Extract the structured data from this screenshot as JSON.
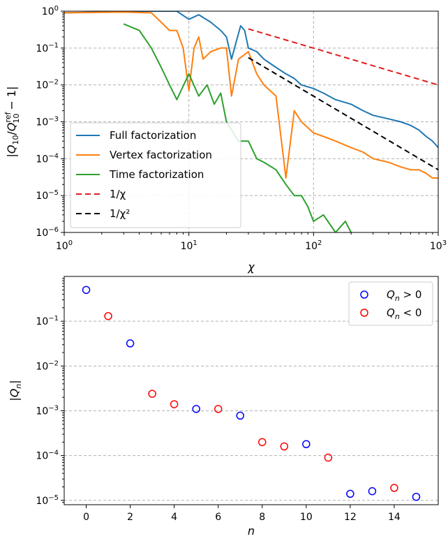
{
  "chart_data": [
    {
      "type": "line",
      "xscale": "log",
      "yscale": "log",
      "xlim": [
        1,
        1000
      ],
      "ylim": [
        1e-06,
        1
      ],
      "xlabel": "χ",
      "ylabel": "|Q_10/Q_10^ref − 1|",
      "xticks": [
        {
          "value": 1,
          "base": "10",
          "exp": "0"
        },
        {
          "value": 10,
          "base": "10",
          "exp": "1"
        },
        {
          "value": 100,
          "base": "10",
          "exp": "2"
        },
        {
          "value": 1000,
          "base": "10",
          "exp": "3"
        }
      ],
      "yticks": [
        {
          "value": 1,
          "base": "10",
          "exp": "0"
        },
        {
          "value": 0.1,
          "base": "10",
          "exp": "−1"
        },
        {
          "value": 0.01,
          "base": "10",
          "exp": "−2"
        },
        {
          "value": 0.001,
          "base": "10",
          "exp": "−3"
        },
        {
          "value": 0.0001,
          "base": "10",
          "exp": "−4"
        },
        {
          "value": 1e-05,
          "base": "10",
          "exp": "−5"
        },
        {
          "value": 1e-06,
          "base": "10",
          "exp": "−6"
        }
      ],
      "grid": true,
      "legend_position": "lower-left",
      "series": [
        {
          "name": "Full factorization",
          "color": "#1f77b4",
          "style": "solid",
          "x": [
            1,
            2,
            5,
            8,
            10,
            12,
            15,
            18,
            20,
            22,
            24,
            26,
            28,
            30,
            35,
            40,
            50,
            60,
            70,
            80,
            100,
            120,
            150,
            200,
            250,
            300,
            400,
            500,
            600,
            700,
            800,
            900,
            1000
          ],
          "y": [
            0.9,
            0.95,
            1.0,
            1.0,
            0.6,
            0.8,
            0.5,
            0.3,
            0.2,
            0.05,
            0.15,
            0.4,
            0.3,
            0.1,
            0.08,
            0.05,
            0.03,
            0.02,
            0.015,
            0.01,
            0.008,
            0.006,
            0.004,
            0.003,
            0.002,
            0.0015,
            0.0012,
            0.001,
            0.0008,
            0.0006,
            0.0004,
            0.0003,
            0.0002
          ]
        },
        {
          "name": "Vertex factorization",
          "color": "#ff7f0e",
          "style": "solid",
          "x": [
            1,
            3,
            5,
            6,
            7,
            8,
            9,
            10,
            11,
            12,
            13,
            15,
            18,
            20,
            22,
            25,
            30,
            35,
            40,
            50,
            60,
            70,
            80,
            100,
            120,
            150,
            200,
            250,
            300,
            400,
            500,
            600,
            700,
            800,
            900,
            1000
          ],
          "y": [
            0.9,
            0.95,
            0.9,
            0.5,
            0.3,
            0.3,
            0.1,
            0.007,
            0.1,
            0.2,
            0.05,
            0.08,
            0.1,
            0.1,
            0.005,
            0.05,
            0.08,
            0.02,
            0.01,
            0.005,
            3e-05,
            0.002,
            0.001,
            0.0005,
            0.0004,
            0.0003,
            0.0002,
            0.00015,
            0.0001,
            8e-05,
            6e-05,
            5e-05,
            5e-05,
            4e-05,
            3e-05,
            3e-05
          ]
        },
        {
          "name": "Time factorization",
          "color": "#2ca02c",
          "style": "solid",
          "x": [
            3,
            4,
            5,
            6,
            7,
            8,
            10,
            12,
            14,
            16,
            18,
            20,
            25,
            30,
            35,
            40,
            50,
            60,
            70,
            80,
            90,
            100,
            120,
            150,
            180,
            200
          ],
          "y": [
            0.45,
            0.3,
            0.1,
            0.03,
            0.01,
            0.004,
            0.02,
            0.005,
            0.01,
            0.003,
            0.006,
            0.001,
            0.0003,
            0.0003,
            0.0001,
            8e-05,
            5e-05,
            2e-05,
            1e-05,
            1e-05,
            5e-06,
            2e-06,
            3e-06,
            1e-06,
            2e-06,
            1e-06
          ]
        },
        {
          "name": "1/χ",
          "color": "#e41a1c",
          "style": "dashed",
          "x": [
            30,
            1000
          ],
          "y": [
            0.33,
            0.01
          ]
        },
        {
          "name": "1/χ²",
          "color": "#000000",
          "style": "dashed",
          "x": [
            30,
            1000
          ],
          "y": [
            0.055,
            5e-05
          ]
        }
      ]
    },
    {
      "type": "scatter",
      "yscale": "log",
      "xlim": [
        -1,
        16
      ],
      "ylim": [
        8e-06,
        1
      ],
      "xlabel": "n",
      "ylabel": "|Q_n|",
      "xticks": [
        0,
        2,
        4,
        6,
        8,
        10,
        12,
        14
      ],
      "yticks": [
        {
          "value": 0.1,
          "base": "10",
          "exp": "−1"
        },
        {
          "value": 0.01,
          "base": "10",
          "exp": "−2"
        },
        {
          "value": 0.001,
          "base": "10",
          "exp": "−3"
        },
        {
          "value": 0.0001,
          "base": "10",
          "exp": "−4"
        },
        {
          "value": 1e-05,
          "base": "10",
          "exp": "−5"
        }
      ],
      "grid": true,
      "legend_position": "top-right",
      "series": [
        {
          "name": "Q_n > 0",
          "color": "#0000ff",
          "x": [
            0,
            2,
            5,
            7,
            10,
            12,
            13,
            15
          ],
          "y": [
            0.5,
            0.032,
            0.0011,
            0.00078,
            0.00018,
            1.4e-05,
            1.6e-05,
            1.2e-05
          ]
        },
        {
          "name": "Q_n < 0",
          "color": "#ff0000",
          "x": [
            1,
            3,
            4,
            6,
            8,
            9,
            11,
            14
          ],
          "y": [
            0.13,
            0.0024,
            0.0014,
            0.0011,
            0.0002,
            0.00016,
            9e-05,
            1.9e-05
          ]
        }
      ]
    }
  ]
}
